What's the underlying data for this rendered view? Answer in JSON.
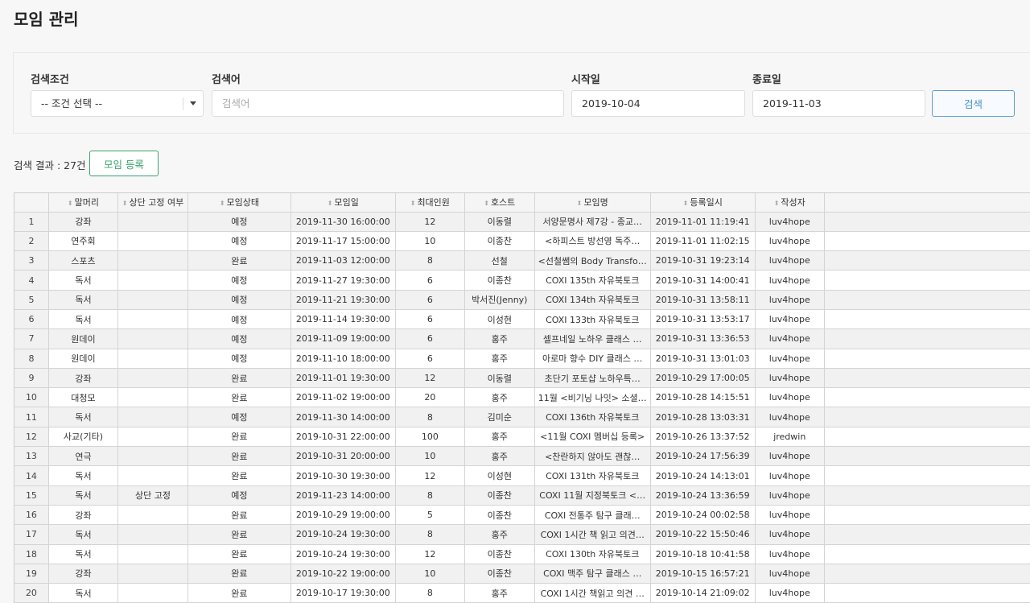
{
  "page": {
    "title": "모임 관리"
  },
  "search": {
    "condition_label": "검색조건",
    "condition_value": "-- 조건 선택 --",
    "keyword_label": "검색어",
    "keyword_placeholder": "검색어",
    "start_label": "시작일",
    "start_value": "2019-10-04",
    "end_label": "종료일",
    "end_value": "2019-11-03",
    "button": "검색"
  },
  "result": {
    "count_text": "검색 결과 : 27건",
    "add_button": "모임 등록"
  },
  "table": {
    "columns": [
      "말머리",
      "상단 고정 여부",
      "모임상태",
      "모임일",
      "최대인원",
      "호스트",
      "모임명",
      "등록일시",
      "작성자"
    ],
    "rows": [
      [
        "1",
        "강좌",
        "",
        "예정",
        "2019-11-30 16:00:00",
        "12",
        "이동렬",
        "서양문명사 제7강 - 종교…",
        "2019-11-01 11:19:41",
        "luv4hope"
      ],
      [
        "2",
        "연주회",
        "",
        "예정",
        "2019-11-17 15:00:00",
        "10",
        "이종찬",
        "<하피스트 방선영 독주…",
        "2019-11-01 11:02:15",
        "luv4hope"
      ],
      [
        "3",
        "스포츠",
        "",
        "완료",
        "2019-11-03 12:00:00",
        "8",
        "선철",
        "<선철쌤의 Body Transfo…",
        "2019-10-31 19:23:14",
        "luv4hope"
      ],
      [
        "4",
        "독서",
        "",
        "예정",
        "2019-11-27 19:30:00",
        "6",
        "이종찬",
        "COXI 135th 자유북토크",
        "2019-10-31 14:00:41",
        "luv4hope"
      ],
      [
        "5",
        "독서",
        "",
        "예정",
        "2019-11-21 19:30:00",
        "6",
        "박서진(Jenny)",
        "COXI 134th 자유북토크",
        "2019-10-31 13:58:11",
        "luv4hope"
      ],
      [
        "6",
        "독서",
        "",
        "예정",
        "2019-11-14 19:30:00",
        "6",
        "이성현",
        "COXI 133th 자유북토크",
        "2019-10-31 13:53:17",
        "luv4hope"
      ],
      [
        "7",
        "원데이",
        "",
        "예정",
        "2019-11-09 19:00:00",
        "6",
        "홍주",
        "셀프네일 노하우 클래스 …",
        "2019-10-31 13:36:53",
        "luv4hope"
      ],
      [
        "8",
        "원데이",
        "",
        "예정",
        "2019-11-10 18:00:00",
        "6",
        "홍주",
        "아로마 향수 DIY 클래스 …",
        "2019-10-31 13:01:03",
        "luv4hope"
      ],
      [
        "9",
        "강좌",
        "",
        "완료",
        "2019-11-01 19:30:00",
        "12",
        "이동렬",
        "초단기 포토샵 노하우특…",
        "2019-10-29 17:00:05",
        "luv4hope"
      ],
      [
        "10",
        "대청모",
        "",
        "완료",
        "2019-11-02 19:00:00",
        "20",
        "홍주",
        "11월 <비기닝 나잇> 소셜…",
        "2019-10-28 14:15:51",
        "luv4hope"
      ],
      [
        "11",
        "독서",
        "",
        "예정",
        "2019-11-30 14:00:00",
        "8",
        "김미순",
        "COXI 136th 자유북토크",
        "2019-10-28 13:03:31",
        "luv4hope"
      ],
      [
        "12",
        "사교(기타)",
        "",
        "완료",
        "2019-10-31 22:00:00",
        "100",
        "홍주",
        "<11월 COXI 멤버십 등록>",
        "2019-10-26 13:37:52",
        "jredwin"
      ],
      [
        "13",
        "연극",
        "",
        "완료",
        "2019-10-31 20:00:00",
        "10",
        "홍주",
        "<찬란하지 않아도 괜찮…",
        "2019-10-24 17:56:39",
        "luv4hope"
      ],
      [
        "14",
        "독서",
        "",
        "완료",
        "2019-10-30 19:30:00",
        "12",
        "이성현",
        "COXI 131th 자유북토크",
        "2019-10-24 14:13:01",
        "luv4hope"
      ],
      [
        "15",
        "독서",
        "상단 고정",
        "예정",
        "2019-11-23 14:00:00",
        "8",
        "이종찬",
        "COXI 11월 지정북토크 <…",
        "2019-10-24 13:36:59",
        "luv4hope"
      ],
      [
        "16",
        "강좌",
        "",
        "완료",
        "2019-10-29 19:00:00",
        "5",
        "이종찬",
        "COXI 전통주 탐구 클래…",
        "2019-10-24 00:02:58",
        "luv4hope"
      ],
      [
        "17",
        "독서",
        "",
        "완료",
        "2019-10-24 19:30:00",
        "8",
        "홍주",
        "COXI 1시간 책 읽고 의견…",
        "2019-10-22 15:50:46",
        "luv4hope"
      ],
      [
        "18",
        "독서",
        "",
        "완료",
        "2019-10-24 19:30:00",
        "12",
        "이종찬",
        "COXI 130th 자유북토크",
        "2019-10-18 10:41:58",
        "luv4hope"
      ],
      [
        "19",
        "강좌",
        "",
        "완료",
        "2019-10-22 19:00:00",
        "10",
        "이종찬",
        "COXI 맥주 탐구 클래스 …",
        "2019-10-15 16:57:21",
        "luv4hope"
      ],
      [
        "20",
        "독서",
        "",
        "완료",
        "2019-10-17 19:30:00",
        "8",
        "홍주",
        "COXI 1시간 책읽고 의견 …",
        "2019-10-14 21:09:02",
        "luv4hope"
      ]
    ]
  },
  "colors": {
    "add_button": "#3aa46e",
    "search_button": "#4a90c8"
  },
  "icons": {
    "sort": "sort-arrows-icon",
    "dropdown": "chevron-down-icon"
  }
}
